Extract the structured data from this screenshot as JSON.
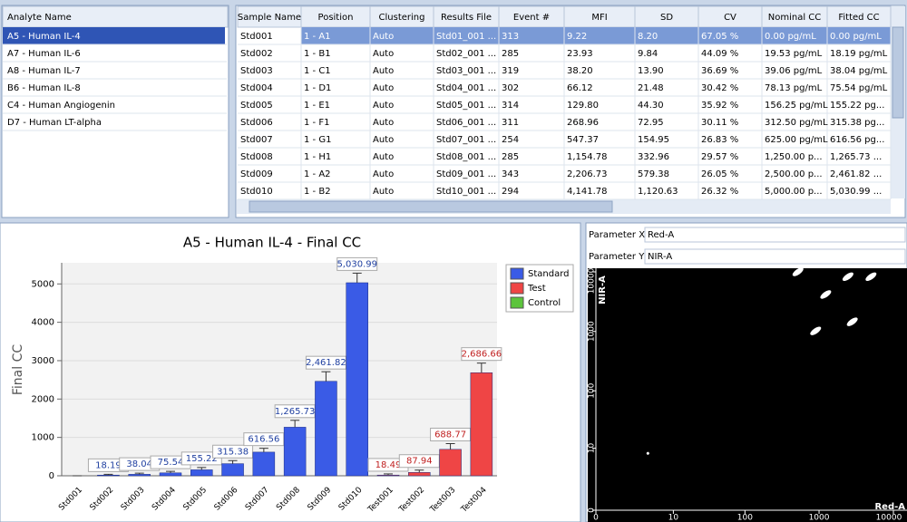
{
  "analytes": {
    "header": "Analyte Name",
    "items": [
      "A5 - Human IL-4",
      "A7 - Human IL-6",
      "A8 - Human IL-7",
      "B6 - Human IL-8",
      "C4 - Human Angiogenin",
      "D7 - Human LT-alpha"
    ]
  },
  "table": {
    "headers": [
      "Sample Name",
      "Position",
      "Clustering",
      "Results File",
      "Event #",
      "MFI",
      "SD",
      "CV",
      "Nominal CC",
      "Fitted CC"
    ],
    "rows": [
      [
        "Std001",
        "1 - A1",
        "Auto",
        "Std01_001 ...",
        "313",
        "9.22",
        "8.20",
        "67.05 %",
        "0.00 pg/mL",
        "0.00 pg/mL"
      ],
      [
        "Std002",
        "1 - B1",
        "Auto",
        "Std02_001 ...",
        "285",
        "23.93",
        "9.84",
        "44.09 %",
        "19.53 pg/mL",
        "18.19 pg/mL"
      ],
      [
        "Std003",
        "1 - C1",
        "Auto",
        "Std03_001 ...",
        "319",
        "38.20",
        "13.90",
        "36.69 %",
        "39.06 pg/mL",
        "38.04 pg/mL"
      ],
      [
        "Std004",
        "1 - D1",
        "Auto",
        "Std04_001 ...",
        "302",
        "66.12",
        "21.48",
        "30.42 %",
        "78.13 pg/mL",
        "75.54 pg/mL"
      ],
      [
        "Std005",
        "1 - E1",
        "Auto",
        "Std05_001 ...",
        "314",
        "129.80",
        "44.30",
        "35.92 %",
        "156.25 pg/mL",
        "155.22 pg..."
      ],
      [
        "Std006",
        "1 - F1",
        "Auto",
        "Std06_001 ...",
        "311",
        "268.96",
        "72.95",
        "30.11 %",
        "312.50 pg/mL",
        "315.38 pg..."
      ],
      [
        "Std007",
        "1 - G1",
        "Auto",
        "Std07_001 ...",
        "254",
        "547.37",
        "154.95",
        "26.83 %",
        "625.00 pg/mL",
        "616.56 pg..."
      ],
      [
        "Std008",
        "1 - H1",
        "Auto",
        "Std08_001 ...",
        "285",
        "1,154.78",
        "332.96",
        "29.57 %",
        "1,250.00 p...",
        "1,265.73 ..."
      ],
      [
        "Std009",
        "1 - A2",
        "Auto",
        "Std09_001 ...",
        "343",
        "2,206.73",
        "579.38",
        "26.05 %",
        "2,500.00 p...",
        "2,461.82 ..."
      ],
      [
        "Std010",
        "1 - B2",
        "Auto",
        "Std10_001 ...",
        "294",
        "4,141.78",
        "1,120.63",
        "26.32 %",
        "5,000.00 p...",
        "5,030.99 ..."
      ]
    ]
  },
  "bar_chart": {
    "type": "bar",
    "title": "A5 - Human IL-4 - Final CC",
    "y_label": "Final CC",
    "categories": [
      "Std001",
      "Std002",
      "Std003",
      "Std004",
      "Std005",
      "Std006",
      "Std007",
      "Std008",
      "Std009",
      "Std010",
      "Test001",
      "Test002",
      "Test003",
      "Test004"
    ],
    "series": [
      {
        "name": "Standard",
        "color": "#3a5be6",
        "values": [
          0,
          18.19,
          38.04,
          75.54,
          155.22,
          315.38,
          616.56,
          1265.73,
          2461.82,
          5030.99,
          null,
          null,
          null,
          null
        ],
        "value_labels": [
          null,
          "18.19",
          "38.04",
          "75.54",
          "155.22",
          "315.38",
          "616.56",
          "1,265.73",
          "2,461.82",
          "5,030.99",
          null,
          null,
          null,
          null
        ],
        "errors": [
          0,
          20,
          30,
          40,
          60,
          80,
          100,
          180,
          250,
          250,
          null,
          null,
          null,
          null
        ]
      },
      {
        "name": "Test",
        "color": "#ef4545",
        "values": [
          null,
          null,
          null,
          null,
          null,
          null,
          null,
          null,
          null,
          null,
          18.49,
          87.94,
          688.77,
          2686.66
        ],
        "value_labels": [
          null,
          null,
          null,
          null,
          null,
          null,
          null,
          null,
          null,
          null,
          "18.49",
          "87.94",
          "688.77",
          "2,686.66"
        ],
        "errors": [
          null,
          null,
          null,
          null,
          null,
          null,
          null,
          null,
          null,
          null,
          30,
          60,
          150,
          250
        ]
      },
      {
        "name": "Control",
        "color": "#5cc43c",
        "values": [
          null,
          null,
          null,
          null,
          null,
          null,
          null,
          null,
          null,
          null,
          null,
          null,
          null,
          null
        ]
      }
    ],
    "ylim": [
      0,
      5550
    ],
    "yticks": [
      0,
      1000,
      2000,
      3000,
      4000,
      5000
    ],
    "grid": true,
    "legend": "top-right"
  },
  "scatter": {
    "type": "scatter",
    "param_x_label": "Parameter X",
    "param_x": "Red-A",
    "param_y_label": "Parameter Y",
    "param_y": "NIR-A",
    "x_label": "Red-A",
    "y_label": "NIR-A",
    "scale": "log",
    "xlim": [
      0,
      10000
    ],
    "ylim": [
      0,
      10000
    ],
    "xticks": [
      0,
      10,
      100,
      1000,
      10000
    ],
    "yticks": [
      0,
      10,
      100,
      1000,
      10000
    ],
    "x": [
      520,
      1230,
      2450,
      5000,
      2800,
      900,
      4
    ],
    "y": [
      10000,
      4170,
      8300,
      8300,
      1450,
      1020,
      8
    ],
    "color": "#ffffff"
  }
}
